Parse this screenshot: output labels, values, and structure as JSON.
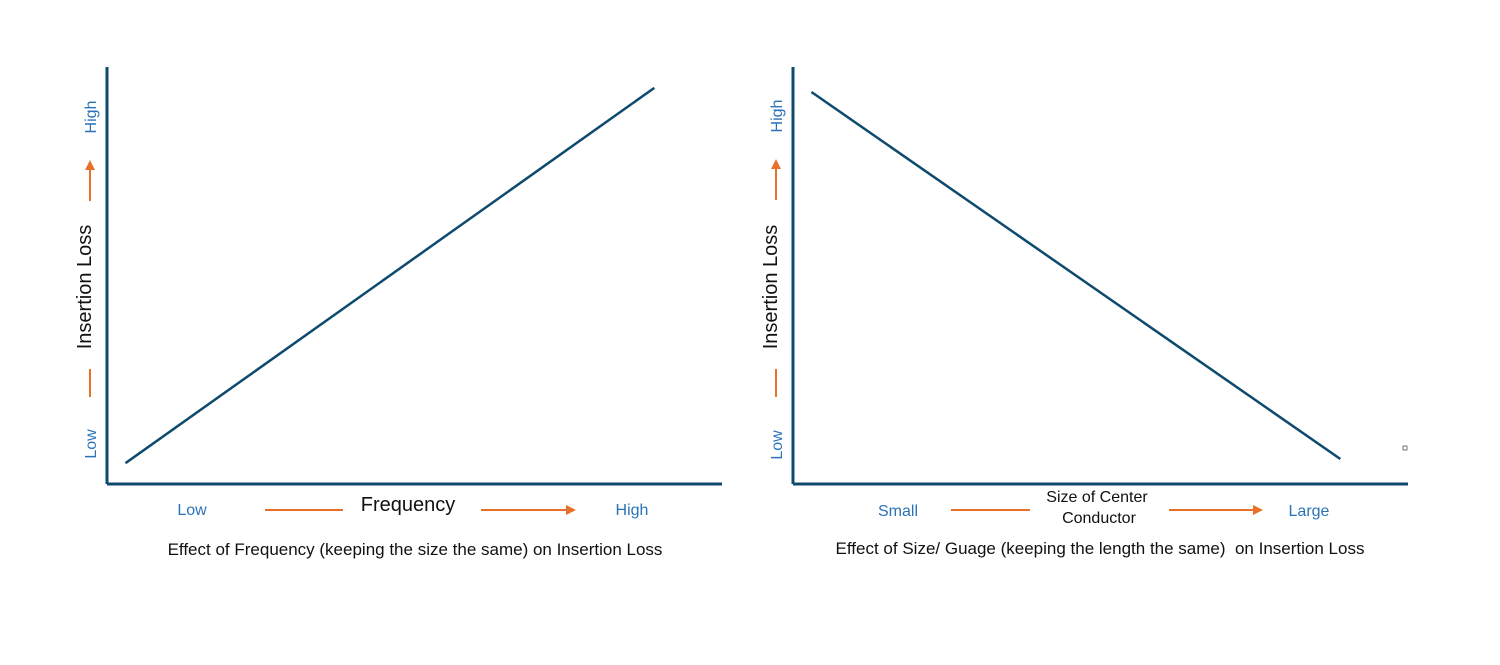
{
  "colors": {
    "axis": "#0e4a6e",
    "line": "#0e4a6e",
    "low_high": "#2a73b8",
    "arrow": "#e8702a",
    "text": "#111111"
  },
  "chart_data": [
    {
      "type": "line",
      "caption": "Effect of Frequency (keeping the size the same) on Insertion Loss",
      "xlabel": "Frequency",
      "ylabel": "Insertion Loss",
      "x_low_label": "Low",
      "x_high_label": "High",
      "y_low_label": "Low",
      "y_high_label": "High",
      "xlim": [
        0,
        1
      ],
      "ylim": [
        0,
        1
      ],
      "grid": false,
      "series": [
        {
          "x": [
            0.03,
            0.89
          ],
          "y": [
            0.05,
            0.95
          ]
        }
      ]
    },
    {
      "type": "line",
      "caption": "Effect of Size/ Guage (keeping the length the same)  on Insertion Loss",
      "xlabel_lines": [
        "Size of Center",
        "Conductor"
      ],
      "ylabel": "Insertion Loss",
      "x_low_label": "Small",
      "x_high_label": "Large",
      "y_low_label": "Low",
      "y_high_label": "High",
      "xlim": [
        0,
        1
      ],
      "ylim": [
        0,
        1
      ],
      "grid": false,
      "series": [
        {
          "x": [
            0.03,
            0.89
          ],
          "y": [
            0.94,
            0.06
          ]
        }
      ]
    }
  ]
}
